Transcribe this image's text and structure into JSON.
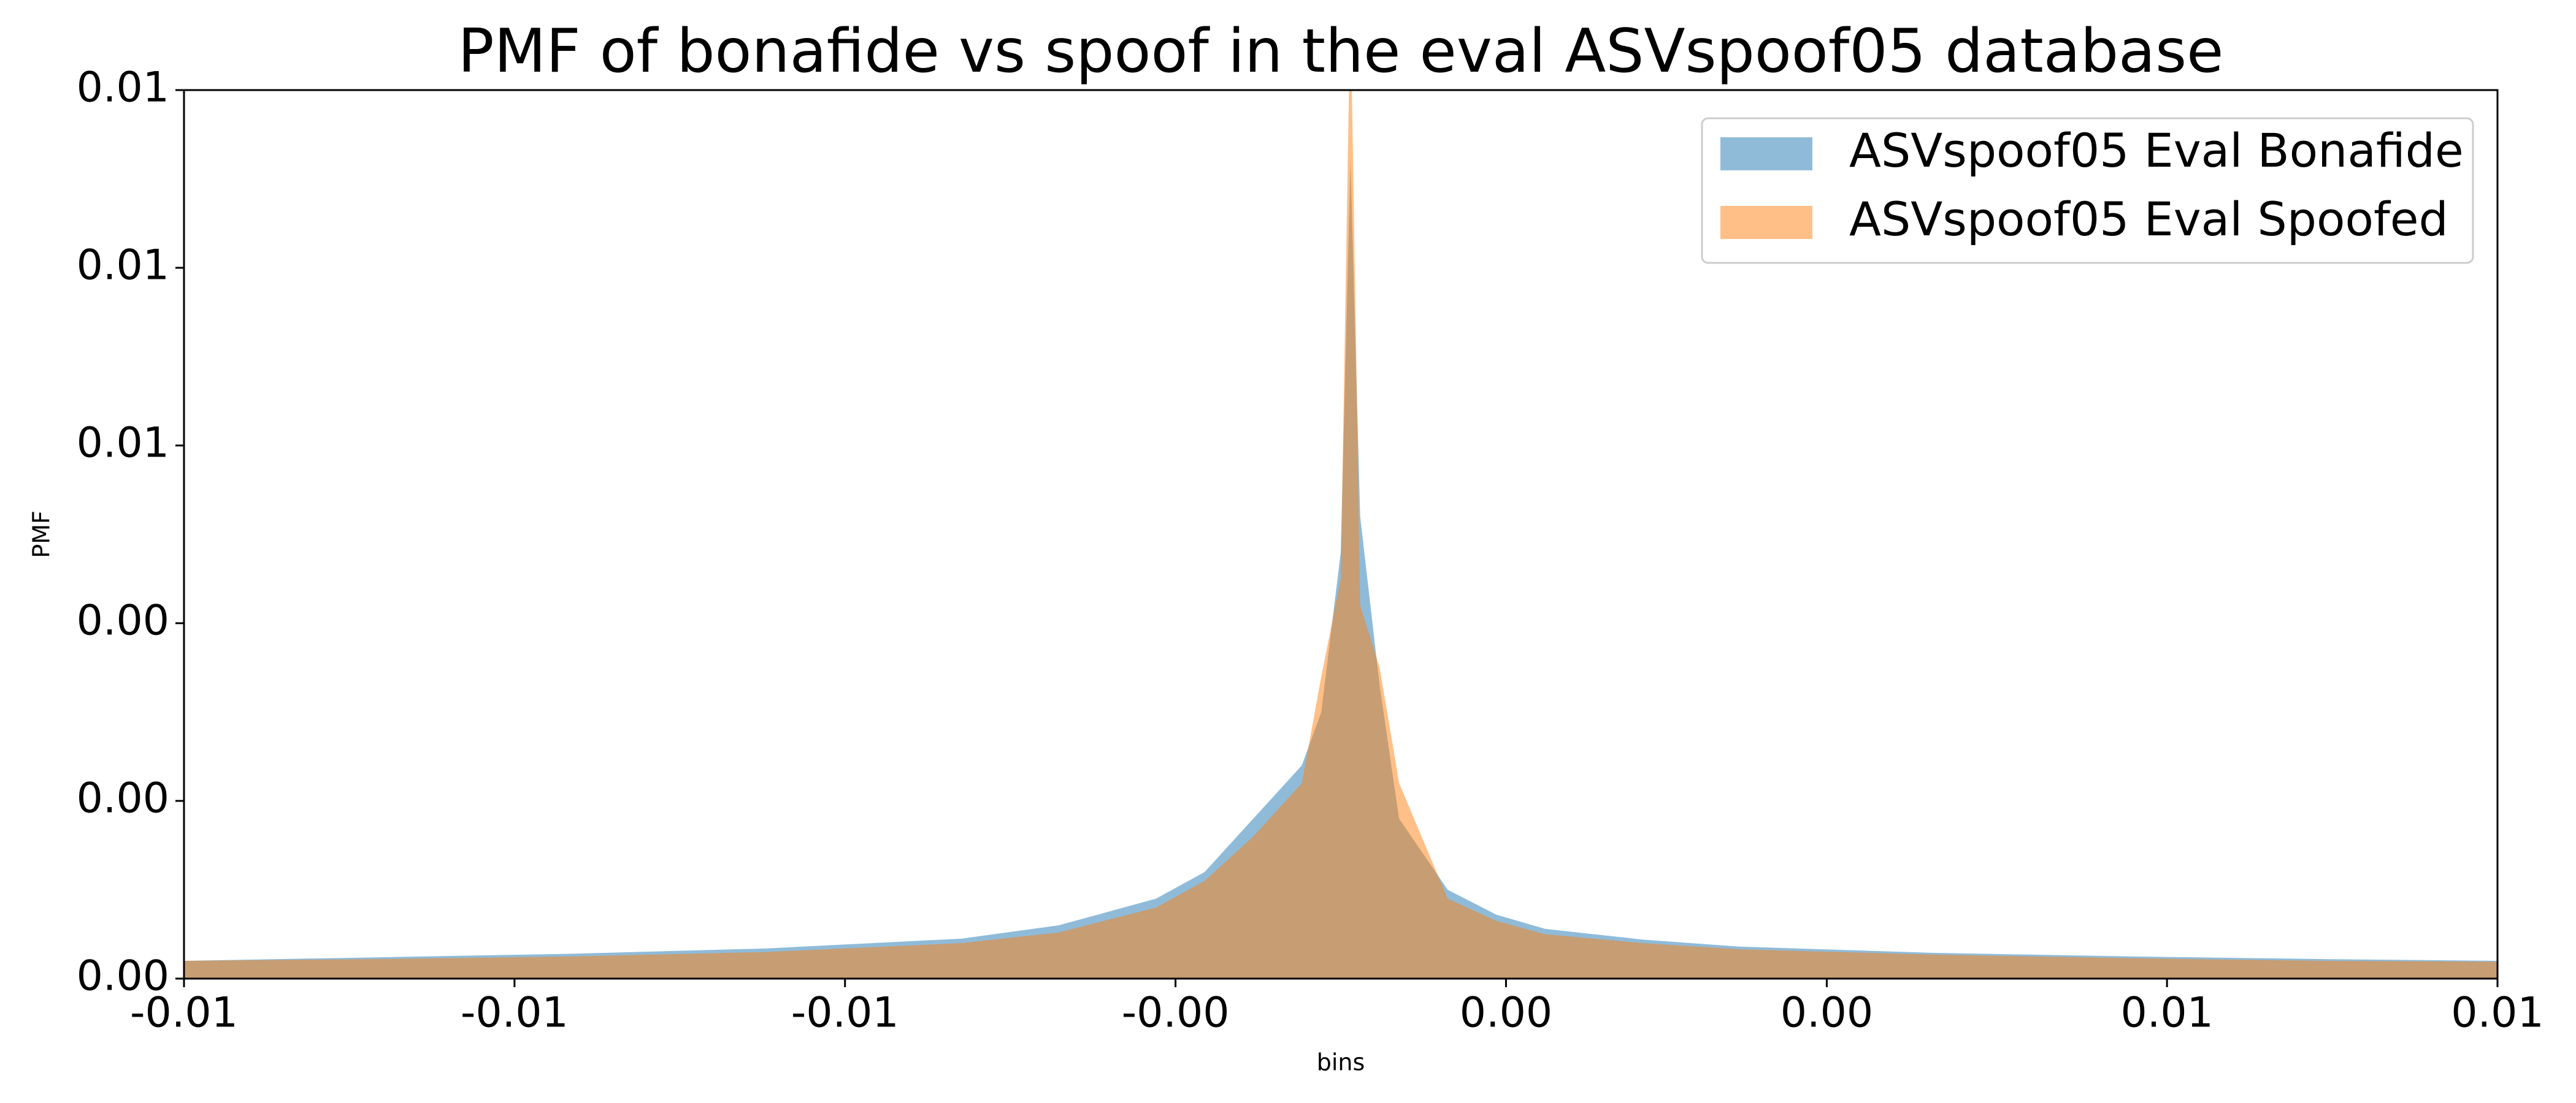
{
  "chart_data": {
    "type": "area",
    "title": "PMF of bonafide vs spoof in the eval ASVspoof05 database",
    "xlabel": "bins",
    "ylabel": "PMF",
    "x": [
      -0.012,
      -0.01,
      -0.008,
      -0.006,
      -0.004,
      -0.003,
      -0.002,
      -0.0015,
      -0.001,
      -0.0005,
      -0.0003,
      -0.0001,
      0,
      0.0001,
      0.0003,
      0.0005,
      0.001,
      0.0015,
      0.002,
      0.003,
      0.004,
      0.006,
      0.008,
      0.01,
      0.0118
    ],
    "series": [
      {
        "name": "ASVspoof05 Eval Bonafide",
        "color": "#1f77b4",
        "opacity": 0.5,
        "values": [
          0.0002,
          0.00024,
          0.00028,
          0.00034,
          0.00045,
          0.0006,
          0.0009,
          0.0012,
          0.0018,
          0.0024,
          0.003,
          0.0048,
          0.0092,
          0.0052,
          0.0033,
          0.0018,
          0.001,
          0.00072,
          0.00056,
          0.00044,
          0.00036,
          0.00029,
          0.00025,
          0.00022,
          0.0002
        ]
      },
      {
        "name": "ASVspoof05 Eval Spoofed",
        "color": "#ff7f0e",
        "opacity": 0.5,
        "values": [
          0.0002,
          0.00022,
          0.00025,
          0.0003,
          0.0004,
          0.00052,
          0.0008,
          0.0011,
          0.0016,
          0.0022,
          0.0034,
          0.0045,
          0.011,
          0.0042,
          0.0035,
          0.0022,
          0.0009,
          0.00065,
          0.0005,
          0.0004,
          0.00033,
          0.00027,
          0.00023,
          0.0002,
          0.00019
        ]
      }
    ],
    "xlim": [
      -0.012,
      0.0118
    ],
    "xticks": [
      {
        "value": -0.012,
        "label": "-0.01"
      },
      {
        "value": -0.0086,
        "label": "-0.01"
      },
      {
        "value": -0.0052,
        "label": "-0.01"
      },
      {
        "value": -0.0018,
        "label": "-0.00"
      },
      {
        "value": 0.0016,
        "label": "0.00"
      },
      {
        "value": 0.0049,
        "label": "0.00"
      },
      {
        "value": 0.0084,
        "label": "0.01"
      },
      {
        "value": 0.0118,
        "label": "0.01"
      }
    ],
    "ylim": [
      0,
      0.01
    ],
    "yticks": [
      {
        "value": 0,
        "label": "0.00"
      },
      {
        "value": 0.002,
        "label": "0.00"
      },
      {
        "value": 0.004,
        "label": "0.00"
      },
      {
        "value": 0.006,
        "label": "0.01"
      },
      {
        "value": 0.008,
        "label": "0.01"
      },
      {
        "value": 0.01,
        "label": "0.01"
      }
    ],
    "legend": "upper right"
  }
}
